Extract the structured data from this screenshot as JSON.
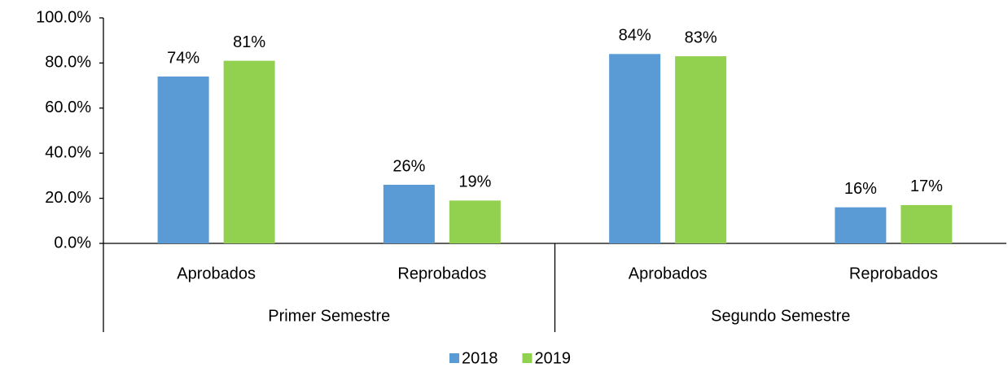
{
  "chart_data": {
    "type": "bar",
    "categories": [
      "Aprobados",
      "Reprobados",
      "Aprobados",
      "Reprobados"
    ],
    "category_groups": [
      "Primer Semestre",
      "Segundo Semestre"
    ],
    "series": [
      {
        "name": "2018",
        "color": "#5b9bd5",
        "values": [
          74,
          26,
          84,
          16
        ],
        "value_labels": [
          "74%",
          "26%",
          "84%",
          "16%"
        ]
      },
      {
        "name": "2019",
        "color": "#92d050",
        "values": [
          81,
          19,
          83,
          17
        ],
        "value_labels": [
          "81%",
          "19%",
          "83%",
          "17%"
        ]
      }
    ],
    "ylim": [
      0,
      100
    ],
    "yticks": [
      {
        "value": 0,
        "label": "0.0%"
      },
      {
        "value": 20,
        "label": "20.0%"
      },
      {
        "value": 40,
        "label": "40.0%"
      },
      {
        "value": 60,
        "label": "60.0%"
      },
      {
        "value": 80,
        "label": "80.0%"
      },
      {
        "value": 100,
        "label": "100.0%"
      }
    ],
    "grid": false,
    "legend": "bottom"
  }
}
